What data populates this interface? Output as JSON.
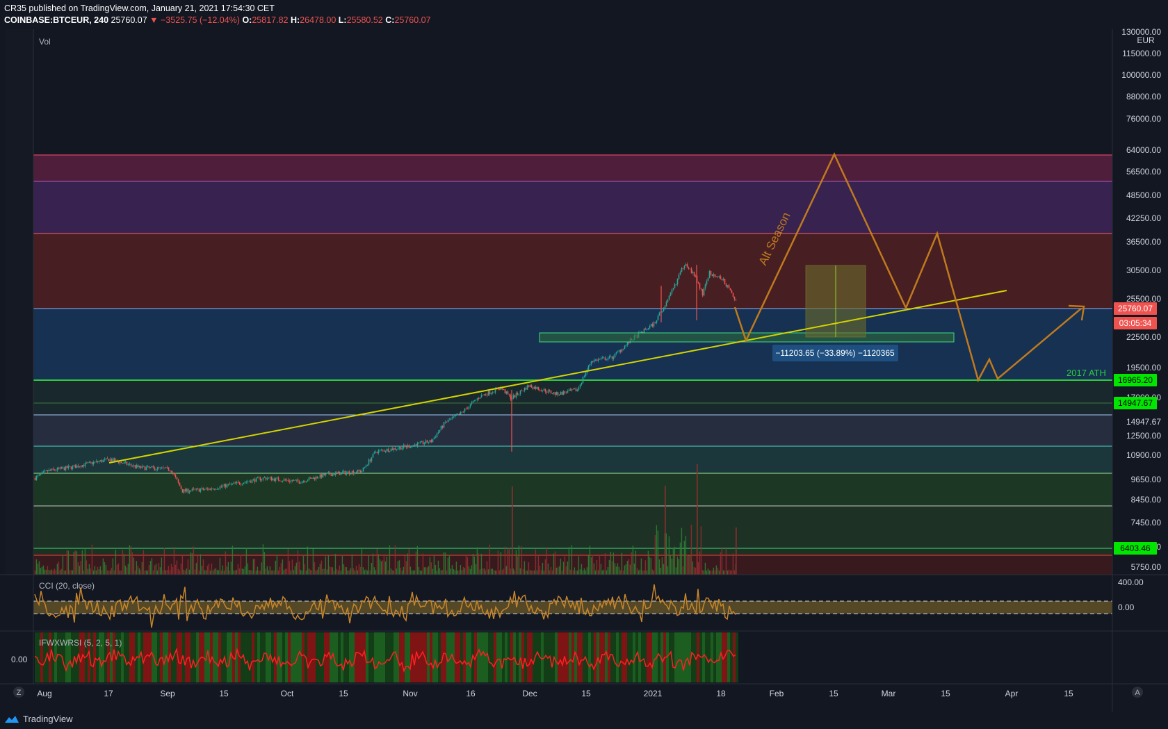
{
  "header": {
    "line1": "CR35 published on TradingView.com, January 21, 2021 17:54:30 CET",
    "symbol": "COINBASE:BTCEUR, 240",
    "price": "25760.07",
    "change": "▼ −3525.75 (−12.04%)",
    "o_label": "O:",
    "o_val": "25817.82",
    "h_label": "H:",
    "h_val": "26478.00",
    "l_label": "L:",
    "l_val": "25580.52",
    "c_label": "C:",
    "c_val": "25760.07"
  },
  "panes": {
    "vol_label": "Vol",
    "cci_label": "CCI (20, close)",
    "ifw_label": "IFWXWRSI (5, 2, 5, 1)"
  },
  "annotations": {
    "alt_season": "Alt Season",
    "ath": "2017 ATH",
    "measure": "−11203.65 (−33.89%) −1120365"
  },
  "price_axis": {
    "unit": "EUR",
    "ticks": [
      "130000.00",
      "115000.00",
      "100000.00",
      "88000.00",
      "76000.00",
      "64000.00",
      "56500.00",
      "48500.00",
      "42250.00",
      "36500.00",
      "30500.00",
      "25500.00",
      "22500.00",
      "19500.00",
      "17000.00",
      "14947.67",
      "12500.00",
      "10900.00",
      "9650.00",
      "8450.00",
      "7450.00",
      "6500.00",
      "5750.00"
    ],
    "tags": [
      {
        "text": "25760.07",
        "color": "#ef5350",
        "text_color": "#ffffff"
      },
      {
        "text": "03:05:34",
        "color": "#ef5350",
        "text_color": "#ffffff"
      },
      {
        "text": "16965.20",
        "color": "#00e600",
        "text_color": "#000000"
      },
      {
        "text": "14947.67",
        "color": "#00e600",
        "text_color": "#000000"
      },
      {
        "text": "6403.46",
        "color": "#00e600",
        "text_color": "#000000"
      }
    ]
  },
  "cci_axis": [
    "400.00",
    "0.00"
  ],
  "ifw_axis": [
    "0.00"
  ],
  "time_axis": [
    "Aug",
    "17",
    "Sep",
    "15",
    "Oct",
    "15",
    "Nov",
    "16",
    "Dec",
    "15",
    "2021",
    "18",
    "Feb",
    "15",
    "Mar",
    "15",
    "Apr",
    "15"
  ],
  "corner_left": "Z",
  "corner_right": "A",
  "footer": {
    "brand": "TradingView"
  },
  "colors": {
    "background": "#131722",
    "up": "#26a69a",
    "down": "#ef5350",
    "trendline": "#d4d400",
    "projection": "#c07a1e",
    "ath_line": "#2ecc40"
  },
  "chart_data": {
    "type": "candlestick",
    "symbol": "COINBASE:BTCEUR",
    "interval": "240",
    "ylim": [
      5200,
      138000
    ],
    "y_scale": "log",
    "key_levels": [
      {
        "label": "2017 ATH",
        "value": 16965.2
      },
      {
        "value": 14947.67
      },
      {
        "value": 6403.46
      }
    ],
    "last_price": 25760.07,
    "countdown": "03:05:34",
    "close_path": [
      [
        "Aug",
        9300
      ],
      [
        "17",
        10100
      ],
      [
        "Sep",
        10000
      ],
      [
        "15",
        8800
      ],
      [
        "Oct",
        9200
      ],
      [
        "15",
        9400
      ],
      [
        "Nov",
        11200
      ],
      [
        "16",
        14500
      ],
      [
        "Dec",
        16200
      ],
      [
        "15",
        18000
      ],
      [
        "2021",
        24000
      ],
      [
        "18",
        30000
      ]
    ],
    "price_bands": [
      {
        "from": 26000,
        "to": 63000
      },
      {
        "from": 17000,
        "to": 26000
      },
      {
        "from": 9900,
        "to": 17000
      },
      {
        "from": 5500,
        "to": 9900
      }
    ]
  }
}
